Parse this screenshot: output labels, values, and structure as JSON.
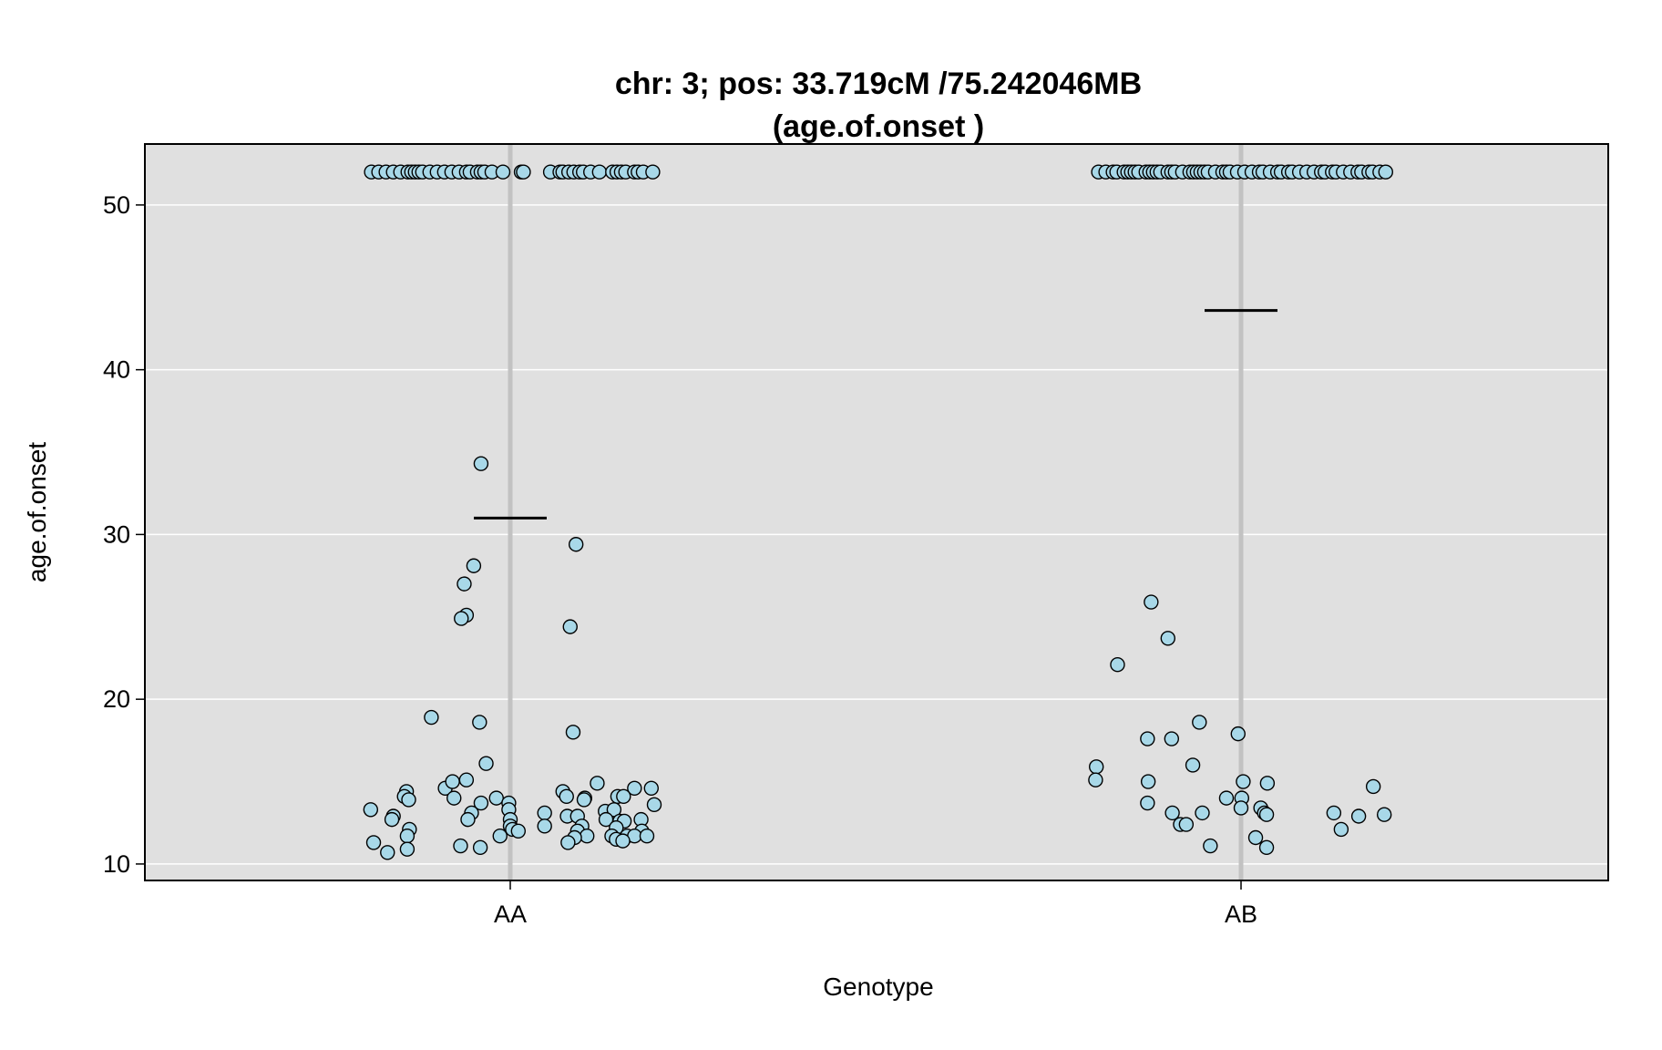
{
  "chart_data": {
    "type": "scatter",
    "title_line1": "chr: 3; pos: 33.719cM /75.242046MB",
    "title_line2": "(age.of.onset )",
    "xlabel": "Genotype",
    "ylabel": "age.of.onset",
    "categories": [
      "AA",
      "AB"
    ],
    "y_ticks": [
      "10",
      "20",
      "30",
      "40",
      "50"
    ],
    "ylim": [
      9.0,
      53.7
    ],
    "grid": true,
    "colors": {
      "panel": "#e0e0e0",
      "gridline": "#ffffff",
      "category_line": "#c2c2c2",
      "point_fill": "#a8d8e8",
      "point_stroke": "#000000",
      "mean_line": "#000000"
    },
    "means": [
      {
        "category": "AA",
        "value": 31.0
      },
      {
        "category": "AB",
        "value": 43.6
      }
    ],
    "series": [
      {
        "category": "AA",
        "points": [
          {
            "x": -0.19,
            "y": 52
          },
          {
            "x": -0.18,
            "y": 52
          },
          {
            "x": -0.17,
            "y": 52
          },
          {
            "x": -0.16,
            "y": 52
          },
          {
            "x": -0.15,
            "y": 52
          },
          {
            "x": -0.14,
            "y": 52
          },
          {
            "x": -0.135,
            "y": 52
          },
          {
            "x": -0.13,
            "y": 52
          },
          {
            "x": -0.125,
            "y": 52
          },
          {
            "x": -0.12,
            "y": 52
          },
          {
            "x": -0.11,
            "y": 52
          },
          {
            "x": -0.1,
            "y": 52
          },
          {
            "x": -0.09,
            "y": 52
          },
          {
            "x": -0.08,
            "y": 52
          },
          {
            "x": -0.07,
            "y": 52
          },
          {
            "x": -0.06,
            "y": 52
          },
          {
            "x": -0.055,
            "y": 52
          },
          {
            "x": -0.045,
            "y": 52
          },
          {
            "x": -0.04,
            "y": 52
          },
          {
            "x": -0.035,
            "y": 52
          },
          {
            "x": -0.025,
            "y": 52
          },
          {
            "x": -0.01,
            "y": 52
          },
          {
            "x": 0.015,
            "y": 52
          },
          {
            "x": 0.018,
            "y": 52
          },
          {
            "x": 0.055,
            "y": 52
          },
          {
            "x": 0.068,
            "y": 52
          },
          {
            "x": 0.072,
            "y": 52
          },
          {
            "x": 0.08,
            "y": 52
          },
          {
            "x": 0.087,
            "y": 52
          },
          {
            "x": 0.095,
            "y": 52
          },
          {
            "x": 0.1,
            "y": 52
          },
          {
            "x": 0.11,
            "y": 52
          },
          {
            "x": 0.122,
            "y": 52
          },
          {
            "x": 0.14,
            "y": 52
          },
          {
            "x": 0.146,
            "y": 52
          },
          {
            "x": 0.152,
            "y": 52
          },
          {
            "x": 0.158,
            "y": 52
          },
          {
            "x": 0.17,
            "y": 52
          },
          {
            "x": 0.175,
            "y": 52
          },
          {
            "x": 0.182,
            "y": 52
          },
          {
            "x": 0.195,
            "y": 52
          },
          {
            "x": -0.04,
            "y": 34.3
          },
          {
            "x": -0.05,
            "y": 28.1
          },
          {
            "x": -0.063,
            "y": 27.0
          },
          {
            "x": -0.06,
            "y": 25.1
          },
          {
            "x": -0.067,
            "y": 24.9
          },
          {
            "x": -0.108,
            "y": 18.9
          },
          {
            "x": -0.042,
            "y": 18.6
          },
          {
            "x": -0.033,
            "y": 16.1
          },
          {
            "x": -0.089,
            "y": 14.6
          },
          {
            "x": -0.079,
            "y": 15.0
          },
          {
            "x": -0.06,
            "y": 15.1
          },
          {
            "x": -0.142,
            "y": 14.4
          },
          {
            "x": -0.145,
            "y": 14.1
          },
          {
            "x": -0.139,
            "y": 13.9
          },
          {
            "x": -0.077,
            "y": 14.0
          },
          {
            "x": -0.019,
            "y": 14.0
          },
          {
            "x": -0.04,
            "y": 13.7
          },
          {
            "x": -0.002,
            "y": 13.7
          },
          {
            "x": -0.191,
            "y": 13.3
          },
          {
            "x": -0.053,
            "y": 13.1
          },
          {
            "x": -0.002,
            "y": 13.3
          },
          {
            "x": -0.16,
            "y": 12.9
          },
          {
            "x": -0.162,
            "y": 12.7
          },
          {
            "x": -0.058,
            "y": 12.7
          },
          {
            "x": 0.0,
            "y": 12.7
          },
          {
            "x": -0.138,
            "y": 12.1
          },
          {
            "x": -0.141,
            "y": 11.7
          },
          {
            "x": 0.0,
            "y": 12.3
          },
          {
            "x": 0.003,
            "y": 12.1
          },
          {
            "x": 0.011,
            "y": 12.0
          },
          {
            "x": -0.014,
            "y": 11.7
          },
          {
            "x": -0.187,
            "y": 11.3
          },
          {
            "x": -0.068,
            "y": 11.1
          },
          {
            "x": -0.041,
            "y": 11.0
          },
          {
            "x": -0.141,
            "y": 10.9
          },
          {
            "x": -0.168,
            "y": 10.7
          },
          {
            "x": 0.09,
            "y": 29.4
          },
          {
            "x": 0.082,
            "y": 24.4
          },
          {
            "x": 0.086,
            "y": 18.0
          },
          {
            "x": 0.119,
            "y": 14.9
          },
          {
            "x": 0.072,
            "y": 14.4
          },
          {
            "x": 0.077,
            "y": 14.1
          },
          {
            "x": 0.102,
            "y": 14.0
          },
          {
            "x": 0.101,
            "y": 13.9
          },
          {
            "x": 0.17,
            "y": 14.6
          },
          {
            "x": 0.193,
            "y": 14.6
          },
          {
            "x": 0.147,
            "y": 14.1
          },
          {
            "x": 0.155,
            "y": 14.1
          },
          {
            "x": 0.197,
            "y": 13.6
          },
          {
            "x": 0.13,
            "y": 13.2
          },
          {
            "x": 0.142,
            "y": 13.3
          },
          {
            "x": 0.047,
            "y": 13.1
          },
          {
            "x": 0.078,
            "y": 12.9
          },
          {
            "x": 0.092,
            "y": 12.9
          },
          {
            "x": 0.131,
            "y": 12.7
          },
          {
            "x": 0.15,
            "y": 12.6
          },
          {
            "x": 0.156,
            "y": 12.6
          },
          {
            "x": 0.179,
            "y": 12.7
          },
          {
            "x": 0.047,
            "y": 12.3
          },
          {
            "x": 0.098,
            "y": 12.3
          },
          {
            "x": 0.092,
            "y": 12.0
          },
          {
            "x": 0.145,
            "y": 12.2
          },
          {
            "x": 0.18,
            "y": 12.0
          },
          {
            "x": 0.139,
            "y": 11.7
          },
          {
            "x": 0.16,
            "y": 11.7
          },
          {
            "x": 0.17,
            "y": 11.7
          },
          {
            "x": 0.187,
            "y": 11.7
          },
          {
            "x": 0.105,
            "y": 11.7
          },
          {
            "x": 0.088,
            "y": 11.6
          },
          {
            "x": 0.145,
            "y": 11.5
          },
          {
            "x": 0.154,
            "y": 11.4
          },
          {
            "x": 0.079,
            "y": 11.3
          }
        ]
      },
      {
        "category": "AB",
        "points": [
          {
            "x": -0.195,
            "y": 52
          },
          {
            "x": -0.185,
            "y": 52
          },
          {
            "x": -0.175,
            "y": 52
          },
          {
            "x": -0.17,
            "y": 52
          },
          {
            "x": -0.16,
            "y": 52
          },
          {
            "x": -0.155,
            "y": 52
          },
          {
            "x": -0.15,
            "y": 52
          },
          {
            "x": -0.145,
            "y": 52
          },
          {
            "x": -0.14,
            "y": 52
          },
          {
            "x": -0.13,
            "y": 52
          },
          {
            "x": -0.125,
            "y": 52
          },
          {
            "x": -0.12,
            "y": 52
          },
          {
            "x": -0.115,
            "y": 52
          },
          {
            "x": -0.11,
            "y": 52
          },
          {
            "x": -0.1,
            "y": 52
          },
          {
            "x": -0.095,
            "y": 52
          },
          {
            "x": -0.09,
            "y": 52
          },
          {
            "x": -0.08,
            "y": 52
          },
          {
            "x": -0.07,
            "y": 52
          },
          {
            "x": -0.065,
            "y": 52
          },
          {
            "x": -0.06,
            "y": 52
          },
          {
            "x": -0.055,
            "y": 52
          },
          {
            "x": -0.05,
            "y": 52
          },
          {
            "x": -0.045,
            "y": 52
          },
          {
            "x": -0.035,
            "y": 52
          },
          {
            "x": -0.025,
            "y": 52
          },
          {
            "x": -0.02,
            "y": 52
          },
          {
            "x": -0.015,
            "y": 52
          },
          {
            "x": -0.005,
            "y": 52
          },
          {
            "x": 0.005,
            "y": 52
          },
          {
            "x": 0.015,
            "y": 52
          },
          {
            "x": 0.025,
            "y": 52
          },
          {
            "x": 0.03,
            "y": 52
          },
          {
            "x": 0.04,
            "y": 52
          },
          {
            "x": 0.05,
            "y": 52
          },
          {
            "x": 0.055,
            "y": 52
          },
          {
            "x": 0.065,
            "y": 52
          },
          {
            "x": 0.07,
            "y": 52
          },
          {
            "x": 0.08,
            "y": 52
          },
          {
            "x": 0.09,
            "y": 52
          },
          {
            "x": 0.1,
            "y": 52
          },
          {
            "x": 0.11,
            "y": 52
          },
          {
            "x": 0.115,
            "y": 52
          },
          {
            "x": 0.125,
            "y": 52
          },
          {
            "x": 0.13,
            "y": 52
          },
          {
            "x": 0.14,
            "y": 52
          },
          {
            "x": 0.15,
            "y": 52
          },
          {
            "x": 0.16,
            "y": 52
          },
          {
            "x": 0.165,
            "y": 52
          },
          {
            "x": 0.175,
            "y": 52
          },
          {
            "x": 0.18,
            "y": 52
          },
          {
            "x": 0.19,
            "y": 52
          },
          {
            "x": 0.198,
            "y": 52
          },
          {
            "x": -0.123,
            "y": 25.9
          },
          {
            "x": -0.1,
            "y": 23.7
          },
          {
            "x": -0.169,
            "y": 22.1
          },
          {
            "x": -0.057,
            "y": 18.6
          },
          {
            "x": -0.004,
            "y": 17.9
          },
          {
            "x": -0.128,
            "y": 17.6
          },
          {
            "x": -0.095,
            "y": 17.6
          },
          {
            "x": -0.066,
            "y": 16.0
          },
          {
            "x": -0.198,
            "y": 15.9
          },
          {
            "x": -0.199,
            "y": 15.1
          },
          {
            "x": -0.127,
            "y": 15.0
          },
          {
            "x": 0.003,
            "y": 15.0
          },
          {
            "x": 0.036,
            "y": 14.9
          },
          {
            "x": 0.181,
            "y": 14.7
          },
          {
            "x": -0.02,
            "y": 14.0
          },
          {
            "x": 0.001,
            "y": 14.0
          },
          {
            "x": -0.128,
            "y": 13.7
          },
          {
            "x": 0.0,
            "y": 13.4
          },
          {
            "x": 0.027,
            "y": 13.4
          },
          {
            "x": -0.094,
            "y": 13.1
          },
          {
            "x": -0.053,
            "y": 13.1
          },
          {
            "x": 0.032,
            "y": 13.1
          },
          {
            "x": 0.035,
            "y": 13.0
          },
          {
            "x": 0.127,
            "y": 13.1
          },
          {
            "x": 0.161,
            "y": 12.9
          },
          {
            "x": 0.196,
            "y": 13.0
          },
          {
            "x": -0.083,
            "y": 12.4
          },
          {
            "x": -0.075,
            "y": 12.4
          },
          {
            "x": 0.137,
            "y": 12.1
          },
          {
            "x": 0.02,
            "y": 11.6
          },
          {
            "x": -0.042,
            "y": 11.1
          },
          {
            "x": 0.035,
            "y": 11.0
          }
        ]
      }
    ]
  }
}
